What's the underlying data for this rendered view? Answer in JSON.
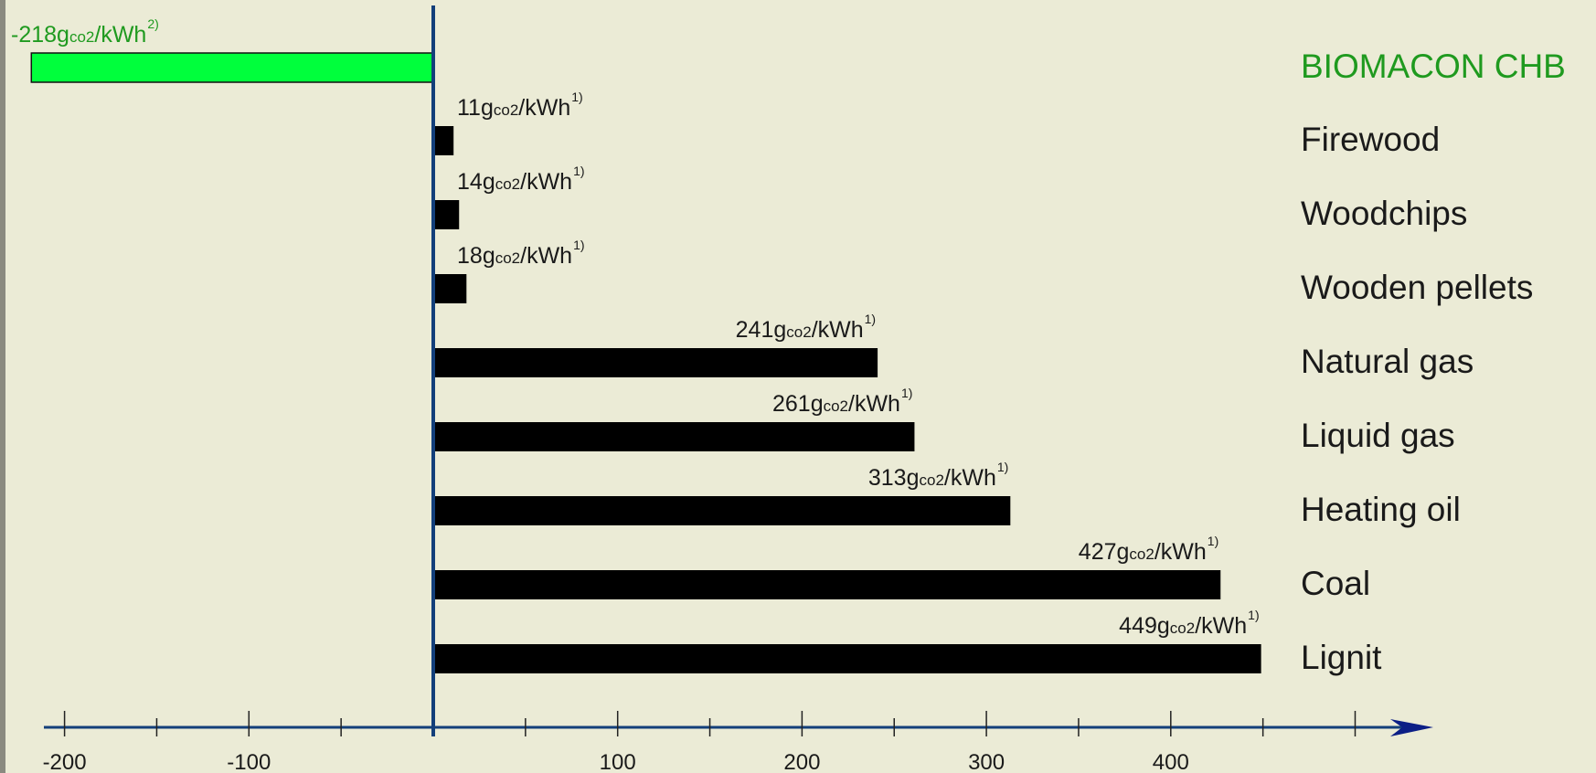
{
  "colors": {
    "background": "#ebebd6",
    "axis": "#133f7a",
    "bar": "#000000",
    "highlight_bar": "#00ff3c",
    "highlight_text": "#1f9a1f",
    "label_text": "#1a1a1a",
    "arrow_fill": "#0c1f86"
  },
  "chart_data": {
    "type": "bar",
    "orientation": "horizontal",
    "categories": [
      "BIOMACON CHB",
      "Firewood",
      "Woodchips",
      "Wooden pellets",
      "Natural gas",
      "Liquid gas",
      "Heating oil",
      "Coal",
      "Lignit"
    ],
    "values": [
      -218,
      11,
      14,
      18,
      241,
      261,
      313,
      427,
      449
    ],
    "data_labels": [
      {
        "value": "-218",
        "unit_g": "g",
        "unit_sub": "co2",
        "unit_rest": "/kWh",
        "footnote": "2)"
      },
      {
        "value": "11",
        "unit_g": "g",
        "unit_sub": "co2",
        "unit_rest": "/kWh",
        "footnote": "1)"
      },
      {
        "value": "14",
        "unit_g": "g",
        "unit_sub": "co2",
        "unit_rest": "/kWh",
        "footnote": "1)"
      },
      {
        "value": "18",
        "unit_g": "g",
        "unit_sub": "co2",
        "unit_rest": "/kWh",
        "footnote": "1)"
      },
      {
        "value": "241",
        "unit_g": "g",
        "unit_sub": "co2",
        "unit_rest": "/kWh",
        "footnote": "1)"
      },
      {
        "value": "261",
        "unit_g": "g",
        "unit_sub": "co2",
        "unit_rest": "/kWh",
        "footnote": "1)"
      },
      {
        "value": "313",
        "unit_g": "g",
        "unit_sub": "co2",
        "unit_rest": "/kWh",
        "footnote": "1)"
      },
      {
        "value": "427",
        "unit_g": "g",
        "unit_sub": "co2",
        "unit_rest": "/kWh",
        "footnote": "1)"
      },
      {
        "value": "449",
        "unit_g": "g",
        "unit_sub": "co2",
        "unit_rest": "/kWh",
        "footnote": "1)"
      }
    ],
    "highlight_category": "BIOMACON CHB",
    "xlim": [
      -200,
      500
    ],
    "major_ticks": [
      -200,
      -150,
      -100,
      -50,
      0,
      50,
      100,
      150,
      200,
      250,
      300,
      350,
      400,
      450,
      500
    ],
    "tick_labels": [
      {
        "value": -200,
        "text": "-200"
      },
      {
        "value": -100,
        "text": "-100"
      },
      {
        "value": 100,
        "text": "100"
      },
      {
        "value": 200,
        "text": "200"
      },
      {
        "value": 300,
        "text": "300"
      },
      {
        "value": 400,
        "text": "400"
      }
    ],
    "category_labels_position": "right",
    "title": "",
    "xlabel": "",
    "ylabel": "",
    "grid": false,
    "legend": "none"
  }
}
